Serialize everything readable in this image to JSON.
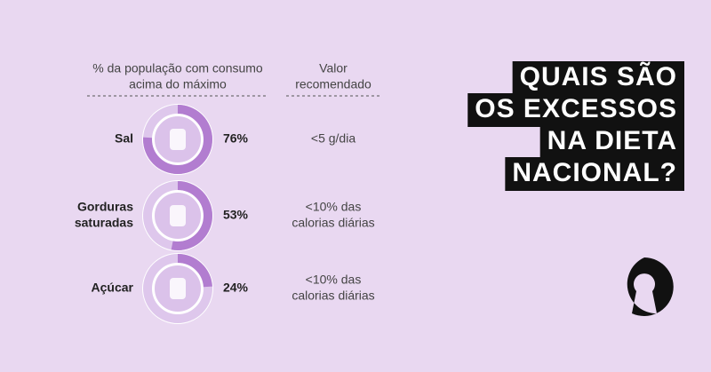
{
  "chart_data": {
    "type": "donut",
    "title": [
      "QUAIS SÃO",
      "OS EXCESSOS",
      "NA DIETA",
      "NACIONAL?"
    ],
    "column_headers": {
      "share": [
        "% da população com consumo",
        "acima do máximo"
      ],
      "recommended": [
        "Valor",
        "recomendado"
      ]
    },
    "categories": [
      [
        "Sal"
      ],
      [
        "Gorduras",
        "saturadas"
      ],
      [
        "Açúcar"
      ]
    ],
    "values": [
      76,
      53,
      24
    ],
    "value_labels": [
      "76%",
      "53%",
      "24%"
    ],
    "color": "#b27dd0",
    "recommended": [
      [
        "<5 g/dia"
      ],
      [
        "<10% das",
        "calorias diárias"
      ],
      [
        "<10% das",
        "calorias diárias"
      ]
    ]
  }
}
